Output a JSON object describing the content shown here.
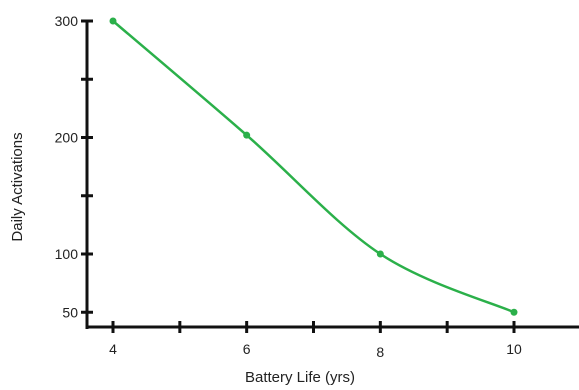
{
  "chart_data": {
    "type": "line",
    "xlabel": "Battery Life (yrs)",
    "ylabel": "Daily Activations",
    "x_ticks_labeled": [
      4,
      6,
      8,
      10
    ],
    "x_ticks_minor": [
      5,
      7,
      9
    ],
    "xlim": [
      3.6,
      10.9
    ],
    "y_ticks_labeled": [
      50,
      100,
      200,
      300
    ],
    "y_ticks_minor": [
      150,
      250
    ],
    "ylim": [
      50,
      300
    ],
    "y_axis_floor": 25,
    "grid": false,
    "legend": "none",
    "series": [
      {
        "color": "#2bb04a",
        "points": [
          {
            "x": 4,
            "y": 300
          },
          {
            "x": 6,
            "y": 202
          },
          {
            "x": 8,
            "y": 100
          },
          {
            "x": 10,
            "y": 50
          }
        ]
      }
    ]
  }
}
